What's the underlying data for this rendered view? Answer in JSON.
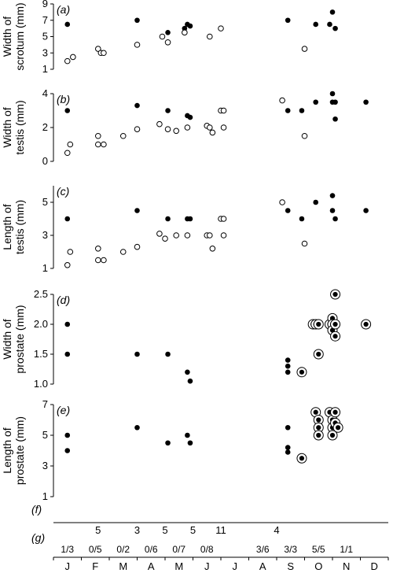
{
  "months": [
    "J",
    "F",
    "M",
    "A",
    "M",
    "J",
    "J",
    "A",
    "S",
    "O",
    "N",
    "D"
  ],
  "chart_data": [
    {
      "type": "scatter",
      "panel": "(a)",
      "ylabel": [
        "Width of",
        "scrotum (mm)"
      ],
      "ylim": [
        1,
        9
      ],
      "yticks": [
        1,
        3,
        5,
        7,
        9
      ],
      "series": [
        {
          "marker": "filled",
          "points": [
            [
              0.5,
              6.5
            ],
            [
              3.0,
              7.0
            ],
            [
              4.1,
              5.5
            ],
            [
              4.7,
              6.0
            ],
            [
              4.8,
              6.5
            ],
            [
              4.9,
              6.3
            ],
            [
              8.4,
              7.0
            ],
            [
              9.4,
              6.5
            ],
            [
              9.9,
              6.5
            ],
            [
              10.0,
              8.0
            ],
            [
              10.1,
              6.0
            ]
          ]
        },
        {
          "marker": "open",
          "points": [
            [
              0.5,
              2.0
            ],
            [
              0.7,
              2.5
            ],
            [
              1.6,
              3.5
            ],
            [
              1.7,
              3.0
            ],
            [
              1.8,
              3.0
            ],
            [
              3.0,
              4.0
            ],
            [
              3.9,
              5.0
            ],
            [
              4.1,
              4.3
            ],
            [
              4.7,
              5.5
            ],
            [
              5.6,
              5.0
            ],
            [
              6.0,
              6.0
            ],
            [
              9.0,
              3.5
            ]
          ]
        }
      ]
    },
    {
      "type": "scatter",
      "panel": "(b)",
      "ylabel": [
        "Width of",
        "testis (mm)"
      ],
      "ylim": [
        0,
        4
      ],
      "yticks": [
        0,
        2,
        4
      ],
      "series": [
        {
          "marker": "filled",
          "points": [
            [
              0.5,
              3.0
            ],
            [
              3.0,
              3.3
            ],
            [
              4.1,
              3.0
            ],
            [
              4.8,
              2.7
            ],
            [
              4.9,
              2.6
            ],
            [
              8.4,
              3.0
            ],
            [
              8.9,
              3.0
            ],
            [
              9.4,
              3.5
            ],
            [
              10.0,
              3.5
            ],
            [
              10.0,
              4.0
            ],
            [
              10.1,
              3.5
            ],
            [
              10.1,
              2.5
            ],
            [
              11.2,
              3.5
            ]
          ]
        },
        {
          "marker": "open",
          "points": [
            [
              0.5,
              0.5
            ],
            [
              0.6,
              1.0
            ],
            [
              1.6,
              1.5
            ],
            [
              1.6,
              1.0
            ],
            [
              1.8,
              1.0
            ],
            [
              2.5,
              1.5
            ],
            [
              3.0,
              1.9
            ],
            [
              3.8,
              2.2
            ],
            [
              4.1,
              1.9
            ],
            [
              4.4,
              1.8
            ],
            [
              4.8,
              2.0
            ],
            [
              5.5,
              2.1
            ],
            [
              5.6,
              2.0
            ],
            [
              5.7,
              1.7
            ],
            [
              6.0,
              3.0
            ],
            [
              6.1,
              3.0
            ],
            [
              6.1,
              2.0
            ],
            [
              8.2,
              3.6
            ],
            [
              9.0,
              1.5
            ]
          ]
        }
      ]
    },
    {
      "type": "scatter",
      "panel": "(c)",
      "ylabel": [
        "Length of",
        "testis (mm)"
      ],
      "ylim": [
        1,
        6
      ],
      "yticks": [
        1,
        3,
        5
      ],
      "series": [
        {
          "marker": "filled",
          "points": [
            [
              0.5,
              4.0
            ],
            [
              3.0,
              4.5
            ],
            [
              4.1,
              4.0
            ],
            [
              4.8,
              4.0
            ],
            [
              4.9,
              4.0
            ],
            [
              8.4,
              4.5
            ],
            [
              8.9,
              4.0
            ],
            [
              9.4,
              5.0
            ],
            [
              10.0,
              5.4
            ],
            [
              10.0,
              4.5
            ],
            [
              10.1,
              4.0
            ],
            [
              11.2,
              4.5
            ]
          ]
        },
        {
          "marker": "open",
          "points": [
            [
              0.5,
              1.2
            ],
            [
              0.6,
              2.0
            ],
            [
              1.6,
              2.2
            ],
            [
              1.6,
              1.5
            ],
            [
              1.8,
              1.5
            ],
            [
              2.5,
              2.0
            ],
            [
              3.0,
              2.3
            ],
            [
              3.8,
              3.1
            ],
            [
              4.0,
              2.8
            ],
            [
              4.4,
              3.0
            ],
            [
              4.8,
              3.0
            ],
            [
              5.5,
              3.0
            ],
            [
              5.6,
              3.0
            ],
            [
              5.7,
              2.2
            ],
            [
              6.0,
              4.0
            ],
            [
              6.1,
              4.0
            ],
            [
              6.1,
              3.0
            ],
            [
              8.2,
              5.0
            ],
            [
              9.0,
              2.5
            ]
          ]
        }
      ]
    },
    {
      "type": "scatter",
      "panel": "(d)",
      "ylabel": [
        "Width of",
        "prostate (mm)"
      ],
      "ylim": [
        1.0,
        2.5
      ],
      "yticks": [
        "1.0",
        "1.5",
        "2.0",
        "2.5"
      ],
      "series": [
        {
          "marker": "filled",
          "points": [
            [
              0.5,
              2.0
            ],
            [
              0.5,
              1.5
            ],
            [
              3.0,
              1.5
            ],
            [
              4.1,
              1.5
            ],
            [
              4.8,
              1.2
            ],
            [
              4.9,
              1.05
            ],
            [
              8.4,
              1.4
            ],
            [
              8.4,
              1.3
            ],
            [
              8.4,
              1.2
            ]
          ]
        },
        {
          "marker": "ringed",
          "points": [
            [
              8.9,
              1.2
            ],
            [
              9.3,
              2.0
            ],
            [
              9.4,
              2.0
            ],
            [
              9.5,
              2.0
            ],
            [
              9.5,
              1.5
            ],
            [
              9.9,
              2.0
            ],
            [
              10.0,
              2.1
            ],
            [
              10.0,
              2.0
            ],
            [
              10.0,
              1.9
            ],
            [
              10.1,
              2.5
            ],
            [
              10.1,
              2.0
            ],
            [
              10.1,
              1.8
            ],
            [
              11.2,
              2.0
            ]
          ]
        }
      ]
    },
    {
      "type": "scatter",
      "panel": "(e)",
      "ylabel": [
        "Length of",
        "prostate (mm)"
      ],
      "ylim": [
        1,
        7
      ],
      "yticks": [
        1,
        3,
        5,
        7
      ],
      "series": [
        {
          "marker": "filled",
          "points": [
            [
              0.5,
              5.0
            ],
            [
              0.5,
              4.0
            ],
            [
              3.0,
              5.5
            ],
            [
              4.1,
              4.5
            ],
            [
              4.8,
              5.0
            ],
            [
              4.9,
              4.5
            ],
            [
              8.4,
              5.5
            ],
            [
              8.4,
              4.2
            ],
            [
              8.4,
              3.9
            ]
          ]
        },
        {
          "marker": "ringed",
          "points": [
            [
              8.9,
              3.5
            ],
            [
              9.4,
              6.5
            ],
            [
              9.5,
              6.0
            ],
            [
              9.5,
              5.5
            ],
            [
              9.5,
              5.0
            ],
            [
              9.9,
              6.5
            ],
            [
              10.0,
              6.0
            ],
            [
              10.0,
              5.5
            ],
            [
              10.0,
              5.0
            ],
            [
              10.1,
              6.5
            ],
            [
              10.1,
              5.8
            ],
            [
              10.2,
              5.5
            ]
          ]
        }
      ]
    }
  ],
  "row_f": {
    "label": "(f)",
    "items": [
      {
        "x": 1.6,
        "text": "5"
      },
      {
        "x": 3.0,
        "text": "3"
      },
      {
        "x": 4.0,
        "text": "5"
      },
      {
        "x": 5.0,
        "text": "5"
      },
      {
        "x": 6.0,
        "text": "11"
      },
      {
        "x": 8.0,
        "text": "4"
      }
    ]
  },
  "row_g": {
    "label": "(g)",
    "items": [
      {
        "x": 0.5,
        "text": "1/3"
      },
      {
        "x": 1.5,
        "text": "0/5"
      },
      {
        "x": 2.5,
        "text": "0/2"
      },
      {
        "x": 3.5,
        "text": "0/6"
      },
      {
        "x": 4.5,
        "text": "0/7"
      },
      {
        "x": 5.5,
        "text": "0/8"
      },
      {
        "x": 7.5,
        "text": "3/6"
      },
      {
        "x": 8.5,
        "text": "3/3"
      },
      {
        "x": 9.5,
        "text": "5/5"
      },
      {
        "x": 10.5,
        "text": "1/1"
      }
    ]
  }
}
